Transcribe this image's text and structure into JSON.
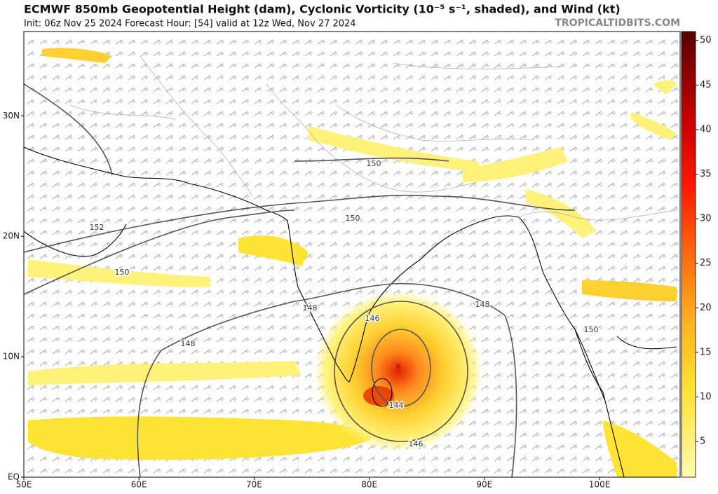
{
  "header": {
    "title": "ECMWF 850mb Geopotential Height (dam), Cyclonic Vorticity (10⁻⁵ s⁻¹, shaded), and Wind (kt)",
    "subtitle": "Init: 06z Nov 25 2024   Forecast Hour: [54]   valid at 12z Wed, Nov 27 2024",
    "site": "TROPICALTIDBITS.COM"
  },
  "map": {
    "xlim": [
      50,
      107
    ],
    "ylim": [
      0,
      37
    ],
    "xticks": [
      {
        "value": 50,
        "label": "50E"
      },
      {
        "value": 60,
        "label": "60E"
      },
      {
        "value": 70,
        "label": "70E"
      },
      {
        "value": 80,
        "label": "80E"
      },
      {
        "value": 90,
        "label": "90E"
      },
      {
        "value": 100,
        "label": "100E"
      }
    ],
    "yticks": [
      {
        "value": 0,
        "label": "EQ"
      },
      {
        "value": 10,
        "label": "10N"
      },
      {
        "value": 20,
        "label": "20N"
      },
      {
        "value": 30,
        "label": "30N"
      }
    ],
    "contour_labels": [
      "150",
      "150",
      "152",
      "150",
      "148",
      "148",
      "146",
      "148",
      "144",
      "146",
      "150"
    ]
  },
  "colorbar": {
    "range": [
      1,
      51
    ],
    "ticks": [
      5,
      10,
      15,
      20,
      25,
      30,
      35,
      40,
      45,
      50
    ]
  }
}
